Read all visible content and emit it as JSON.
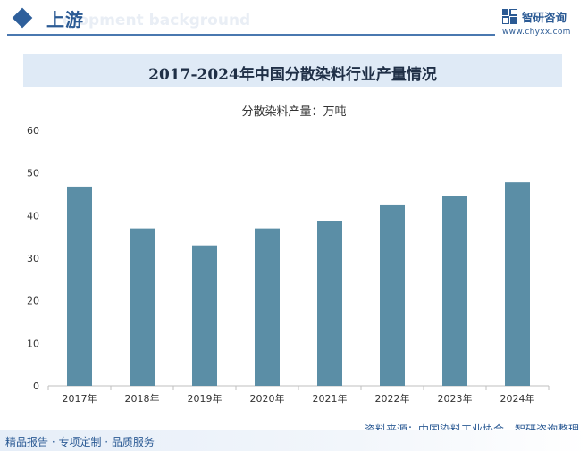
{
  "header": {
    "section_title": "上游",
    "watermark_text": "elopment background",
    "logo_name": "智研咨询",
    "logo_url": "www.chyxx.com"
  },
  "chart_data": {
    "type": "bar",
    "title": "2017-2024年中国分散染料行业产量情况",
    "unit_label": "分散染料产量：万吨",
    "categories": [
      "2017年",
      "2018年",
      "2019年",
      "2020年",
      "2021年",
      "2022年",
      "2023年",
      "2024年"
    ],
    "values": [
      46.8,
      37,
      33,
      37,
      38.8,
      42.6,
      44.5,
      47.8
    ],
    "ylim": [
      0,
      60
    ],
    "yticks": [
      0,
      10,
      20,
      30,
      40,
      50,
      60
    ],
    "bar_color": "#5b8ea6",
    "grid": false
  },
  "footer": {
    "source": "资料来源：中国染料工业协会、智研咨询整理",
    "slogan": "精品报告 · 专项定制 · 品质服务"
  }
}
